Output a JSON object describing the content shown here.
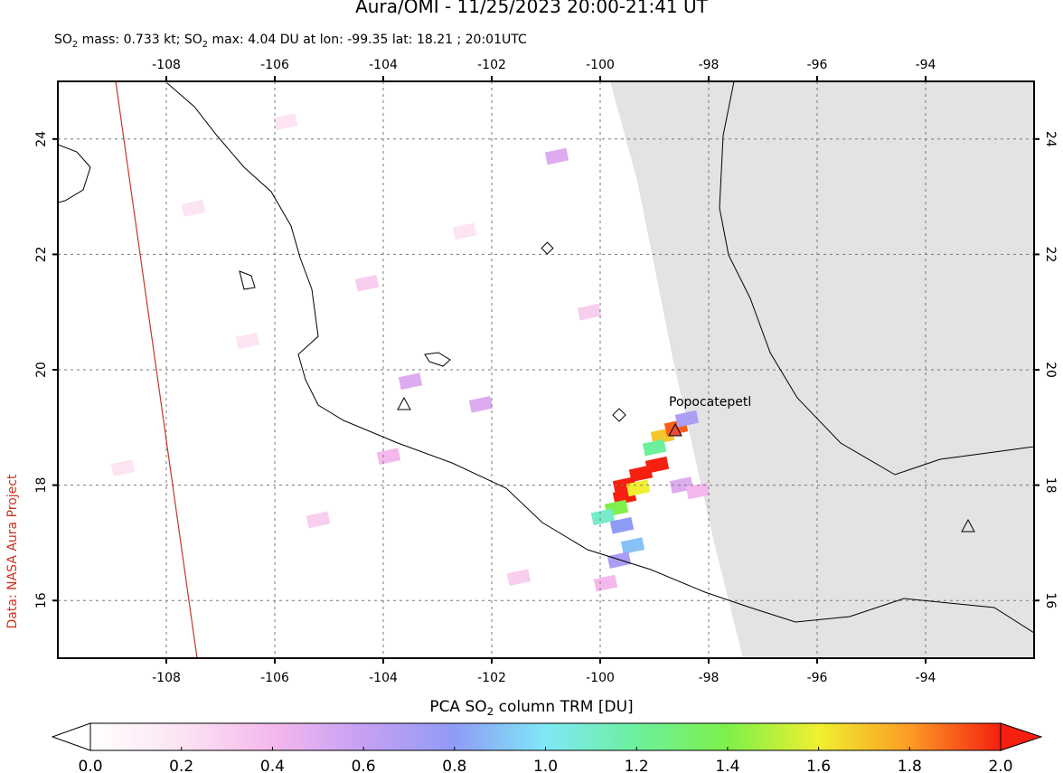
{
  "title": "Aura/OMI - 11/25/2023 20:00-21:41 UT",
  "subtitle": [
    {
      "text": "SO",
      "subscript": false
    },
    {
      "text": "2",
      "subscript": true
    },
    {
      "text": " mass: 0.733 kt; SO",
      "subscript": false
    },
    {
      "text": "2",
      "subscript": true
    },
    {
      "text": " max: 4.04 DU at lon: -99.35 lat: 18.21 ; 20:01UTC",
      "subscript": false
    }
  ],
  "map": {
    "xlim": [
      -110,
      -92
    ],
    "ylim": [
      15,
      25
    ],
    "xticks": [
      -108,
      -106,
      -104,
      -102,
      -100,
      -98,
      -96,
      -94
    ],
    "yticks": [
      16,
      18,
      20,
      22,
      24
    ],
    "volcano_label": "Popocatepetl",
    "so2_pixels": [
      {
        "lon": -99.55,
        "lat": 18.0,
        "value": 2.0
      },
      {
        "lon": -99.25,
        "lat": 18.2,
        "value": 2.0
      },
      {
        "lon": -98.95,
        "lat": 18.35,
        "value": 2.0
      },
      {
        "lon": -99.55,
        "lat": 17.8,
        "value": 2.0
      },
      {
        "lon": -99.3,
        "lat": 17.95,
        "value": 1.6
      },
      {
        "lon": -98.85,
        "lat": 18.85,
        "value": 1.7
      },
      {
        "lon": -98.6,
        "lat": 19.0,
        "value": 1.9
      },
      {
        "lon": -99.0,
        "lat": 18.65,
        "value": 1.2
      },
      {
        "lon": -99.7,
        "lat": 17.6,
        "value": 1.4
      },
      {
        "lon": -99.95,
        "lat": 17.45,
        "value": 1.1
      },
      {
        "lon": -99.6,
        "lat": 17.3,
        "value": 0.8
      },
      {
        "lon": -99.4,
        "lat": 16.95,
        "value": 0.9
      },
      {
        "lon": -99.65,
        "lat": 16.7,
        "value": 0.7
      },
      {
        "lon": -98.4,
        "lat": 19.15,
        "value": 0.7
      },
      {
        "lon": -98.5,
        "lat": 18.0,
        "value": 0.5
      },
      {
        "lon": -98.2,
        "lat": 17.9,
        "value": 0.4
      },
      {
        "lon": -99.9,
        "lat": 16.3,
        "value": 0.4
      },
      {
        "lon": -103.5,
        "lat": 19.8,
        "value": 0.5
      },
      {
        "lon": -102.2,
        "lat": 19.4,
        "value": 0.5
      },
      {
        "lon": -103.9,
        "lat": 18.5,
        "value": 0.4
      },
      {
        "lon": -100.8,
        "lat": 23.7,
        "value": 0.5
      },
      {
        "lon": -104.3,
        "lat": 21.5,
        "value": 0.3
      },
      {
        "lon": -106.5,
        "lat": 20.5,
        "value": 0.2
      },
      {
        "lon": -107.5,
        "lat": 22.8,
        "value": 0.2
      },
      {
        "lon": -105.2,
        "lat": 17.4,
        "value": 0.3
      },
      {
        "lon": -101.5,
        "lat": 16.4,
        "value": 0.3
      },
      {
        "lon": -102.5,
        "lat": 22.4,
        "value": 0.2
      },
      {
        "lon": -100.2,
        "lat": 21.0,
        "value": 0.3
      },
      {
        "lon": -108.8,
        "lat": 18.3,
        "value": 0.2
      },
      {
        "lon": -105.8,
        "lat": 24.3,
        "value": 0.2
      }
    ]
  },
  "colorbar": {
    "label": [
      {
        "text": "PCA SO",
        "subscript": false
      },
      {
        "text": "2",
        "subscript": true
      },
      {
        "text": " column TRM [DU]",
        "subscript": false
      }
    ],
    "lim": [
      0,
      2
    ],
    "ticks": [
      {
        "value": 0,
        "label": "0.0"
      },
      {
        "value": 0.2,
        "label": "0.2"
      },
      {
        "value": 0.4,
        "label": "0.4"
      },
      {
        "value": 0.6,
        "label": "0.6"
      },
      {
        "value": 0.8,
        "label": "0.8"
      },
      {
        "value": 1.0,
        "label": "1.0"
      },
      {
        "value": 1.2,
        "label": "1.2"
      },
      {
        "value": 1.4,
        "label": "1.4"
      },
      {
        "value": 1.6,
        "label": "1.6"
      },
      {
        "value": 1.8,
        "label": "1.8"
      },
      {
        "value": 2.0,
        "label": "2.0"
      }
    ]
  },
  "credit": "Data: NASA Aura Project"
}
